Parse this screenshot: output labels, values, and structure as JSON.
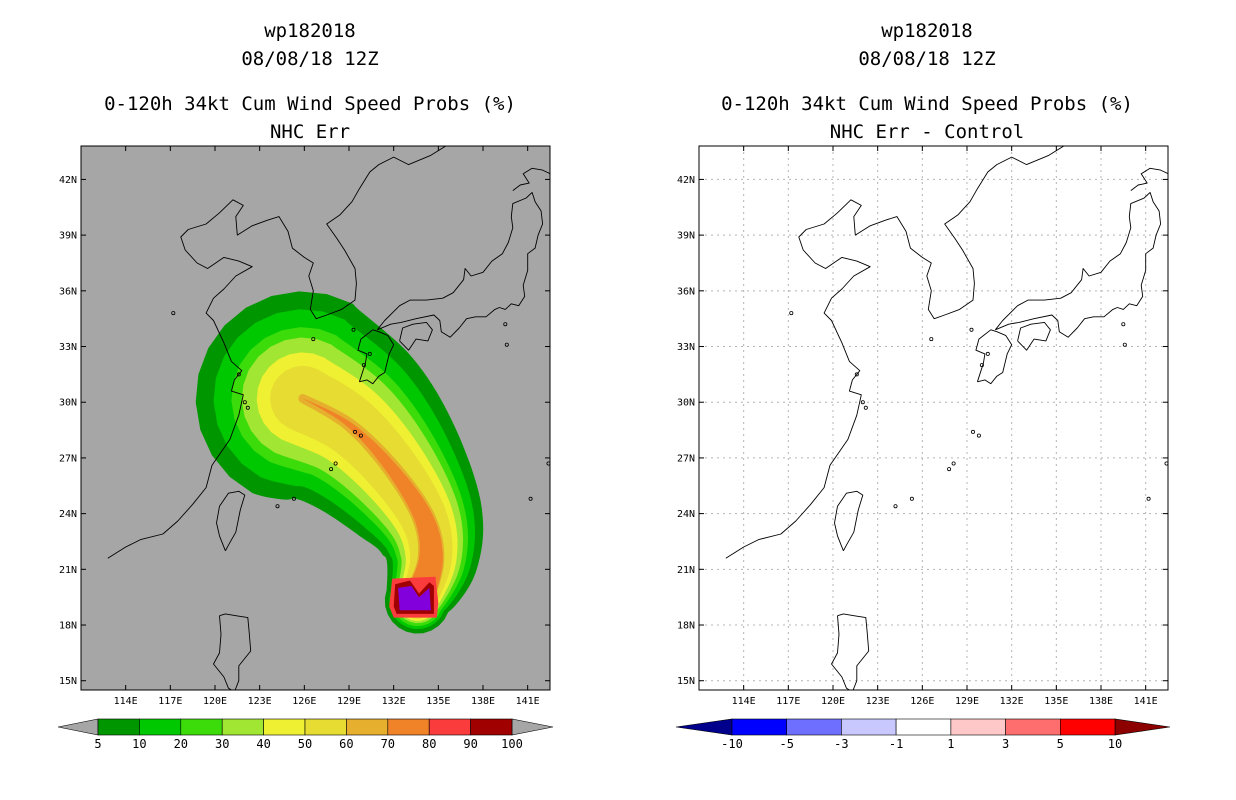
{
  "chart_data": [
    {
      "type": "heatmap",
      "title_lines": [
        "wp182018",
        "08/08/18 12Z",
        "0-120h 34kt Cum Wind Speed Probs (%)",
        "NHC Err"
      ],
      "xlabel": "",
      "ylabel": "",
      "x_ticks": [
        "114E",
        "117E",
        "120E",
        "123E",
        "126E",
        "129E",
        "132E",
        "135E",
        "138E",
        "141E"
      ],
      "y_ticks": [
        "15N",
        "18N",
        "21N",
        "24N",
        "27N",
        "30N",
        "33N",
        "36N",
        "39N",
        "42N"
      ],
      "xlim": [
        111,
        142.5
      ],
      "ylim": [
        14.5,
        43.8
      ],
      "grid": false,
      "background_color": "#a6a6a6",
      "colorbar": {
        "labels": [
          "5",
          "10",
          "20",
          "30",
          "40",
          "50",
          "60",
          "70",
          "80",
          "90",
          "100"
        ],
        "colors": [
          "#009600",
          "#00c800",
          "#3cdc0a",
          "#a0e632",
          "#f0f032",
          "#e6dc32",
          "#e6af2d",
          "#f08228",
          "#fa3c3c",
          "#a00000",
          "#8200dc"
        ],
        "end_colors": [
          "#a6a6a6",
          "#a6a6a6"
        ]
      },
      "track_center": [
        [
          133.6,
          19.3
        ],
        [
          134.5,
          21.5
        ],
        [
          134.0,
          23.8
        ],
        [
          131.8,
          26.5
        ],
        [
          129.0,
          28.8
        ],
        [
          125.9,
          30.2
        ]
      ],
      "prob_contours": [
        {
          "level": "5",
          "color": "#009600",
          "r_start": 2.2,
          "r_end": 7.2
        },
        {
          "level": "10",
          "color": "#00c800",
          "r_start": 1.9,
          "r_end": 6.0
        },
        {
          "level": "20",
          "color": "#3cdc0a",
          "r_start": 1.7,
          "r_end": 4.8
        },
        {
          "level": "30",
          "color": "#a0e632",
          "r_start": 1.5,
          "r_end": 4.1
        },
        {
          "level": "40",
          "color": "#f0f032",
          "r_start": 1.35,
          "r_end": 3.1
        },
        {
          "level": "50",
          "color": "#e6dc32",
          "r_start": 1.2,
          "r_end": 2.2
        },
        {
          "level": "60",
          "color": "#e6af2d",
          "r_start": 1.05,
          "r_end": 0.3
        },
        {
          "level": "70",
          "color": "#f08228",
          "r_start": 1.0,
          "r_end": 0
        }
      ],
      "core_polygons": [
        {
          "level": "80",
          "color": "#fa3c3c",
          "points": [
            [
              131.9,
              20.5
            ],
            [
              134.8,
              20.6
            ],
            [
              135.0,
              19.2
            ],
            [
              134.9,
              18.4
            ],
            [
              132.0,
              18.4
            ],
            [
              131.7,
              19.0
            ]
          ]
        },
        {
          "level": "90",
          "color": "#a00000",
          "points": [
            [
              132.1,
              20.2
            ],
            [
              133.1,
              20.4
            ],
            [
              133.7,
              19.7
            ],
            [
              134.4,
              20.3
            ],
            [
              134.7,
              20.1
            ],
            [
              134.7,
              18.6
            ],
            [
              132.2,
              18.6
            ],
            [
              132.0,
              19.0
            ]
          ]
        },
        {
          "level": "100",
          "color": "#8200dc",
          "points": [
            [
              132.3,
              20.0
            ],
            [
              133.2,
              20.1
            ],
            [
              133.7,
              19.5
            ],
            [
              134.4,
              20.0
            ],
            [
              134.5,
              18.8
            ],
            [
              132.4,
              18.8
            ]
          ]
        }
      ]
    },
    {
      "type": "heatmap",
      "title_lines": [
        "wp182018",
        "08/08/18 12Z",
        "0-120h 34kt Cum Wind Speed Probs (%)",
        "NHC Err - Control"
      ],
      "xlabel": "",
      "ylabel": "",
      "x_ticks": [
        "114E",
        "117E",
        "120E",
        "123E",
        "126E",
        "129E",
        "132E",
        "135E",
        "138E",
        "141E"
      ],
      "y_ticks": [
        "15N",
        "18N",
        "21N",
        "24N",
        "27N",
        "30N",
        "33N",
        "36N",
        "39N",
        "42N"
      ],
      "xlim": [
        111,
        142.5
      ],
      "ylim": [
        14.5,
        43.8
      ],
      "grid": true,
      "background_color": "#ffffff",
      "colorbar": {
        "labels": [
          "-10",
          "-5",
          "-3",
          "-1",
          "1",
          "3",
          "5",
          "10"
        ],
        "colors": [
          "#0000c8",
          "#0000ff",
          "#6e6eff",
          "#c8c8ff",
          "#ffffff",
          "#ffc8c8",
          "#ff6e6e",
          "#ff0000",
          "#8c0000"
        ],
        "end_colors": [
          "#00008c",
          "#8c0000"
        ]
      }
    }
  ]
}
